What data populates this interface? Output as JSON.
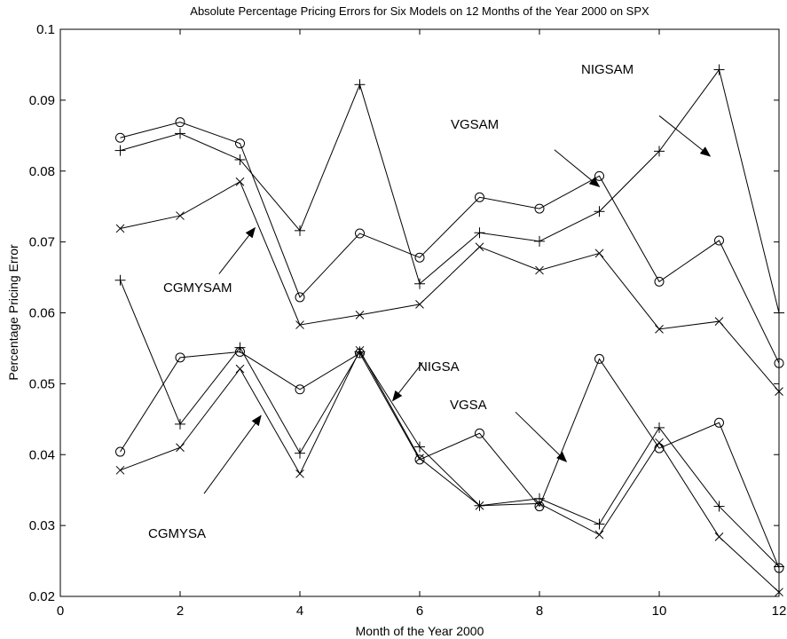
{
  "chart_data": {
    "type": "line",
    "title": "Absolute Percentage Pricing Errors for Six Models on 12 Months of the Year 2000 on SPX",
    "xlabel": "Month of the Year 2000",
    "ylabel": "Percentage Pricing Error",
    "xlim": [
      0,
      12
    ],
    "ylim": [
      0.02,
      0.1
    ],
    "xticks": [
      0,
      2,
      4,
      6,
      8,
      10,
      12
    ],
    "yticks": [
      0.02,
      0.03,
      0.04,
      0.05,
      0.06,
      0.07,
      0.08,
      0.09,
      0.1
    ],
    "xtick_labels": [
      "0",
      "2",
      "4",
      "6",
      "8",
      "10",
      "12"
    ],
    "ytick_labels": [
      "0.02",
      "0.03",
      "0.04",
      "0.05",
      "0.06",
      "0.07",
      "0.08",
      "0.09",
      "0.1"
    ],
    "grid": false,
    "line_color": "#000000",
    "x": [
      1,
      2,
      3,
      4,
      5,
      6,
      7,
      8,
      9,
      10,
      11,
      12
    ],
    "series": [
      {
        "marker": "circle",
        "values": [
          0.0847,
          0.0869,
          0.0839,
          0.0622,
          0.0712,
          0.0678,
          0.0763,
          0.0747,
          0.0793,
          0.0644,
          0.0702,
          0.0529
        ]
      },
      {
        "marker": "plus",
        "values": [
          0.0829,
          0.0853,
          0.0816,
          0.0716,
          0.0922,
          0.0641,
          0.0713,
          0.0701,
          0.0743,
          0.0828,
          0.0943,
          0.06
        ]
      },
      {
        "marker": "x",
        "values": [
          0.0719,
          0.0737,
          0.0785,
          0.0583,
          0.0597,
          0.0612,
          0.0693,
          0.066,
          0.0684,
          0.0577,
          0.0588,
          0.0489
        ]
      },
      {
        "marker": "circle",
        "values": [
          0.0404,
          0.0537,
          0.0545,
          0.0492,
          0.0543,
          0.0393,
          0.043,
          0.0327,
          0.0535,
          0.0409,
          0.0445,
          0.024
        ]
      },
      {
        "marker": "plus",
        "values": [
          0.0646,
          0.0443,
          0.0551,
          0.0402,
          0.0545,
          0.0411,
          0.0328,
          0.0338,
          0.0302,
          0.0438,
          0.0327,
          0.0242
        ]
      },
      {
        "marker": "x",
        "values": [
          0.0378,
          0.041,
          0.0521,
          0.0373,
          0.0547,
          0.0395,
          0.0328,
          0.0331,
          0.0287,
          0.0417,
          0.0284,
          0.0206
        ]
      }
    ],
    "annotations": [
      {
        "text": "NIGSAM",
        "arrow_from": [
          10.0,
          0.0878
        ],
        "arrow_to": [
          10.85,
          0.0821
        ]
      },
      {
        "text": "VGSAM",
        "arrow_from": [
          8.25,
          0.083
        ],
        "arrow_to": [
          9.0,
          0.0778
        ]
      },
      {
        "text": "CGMYSAM",
        "arrow_from": [
          2.65,
          0.0655
        ],
        "arrow_to": [
          3.25,
          0.072
        ]
      },
      {
        "text": "NIGSA",
        "arrow_from": [
          6.05,
          0.053
        ],
        "arrow_to": [
          5.55,
          0.0476
        ]
      },
      {
        "text": "VGSA",
        "arrow_from": [
          7.6,
          0.046
        ],
        "arrow_to": [
          8.45,
          0.039
        ]
      },
      {
        "text": "CGMYSA",
        "arrow_from": [
          2.4,
          0.0345
        ],
        "arrow_to": [
          3.35,
          0.0455
        ]
      }
    ]
  }
}
